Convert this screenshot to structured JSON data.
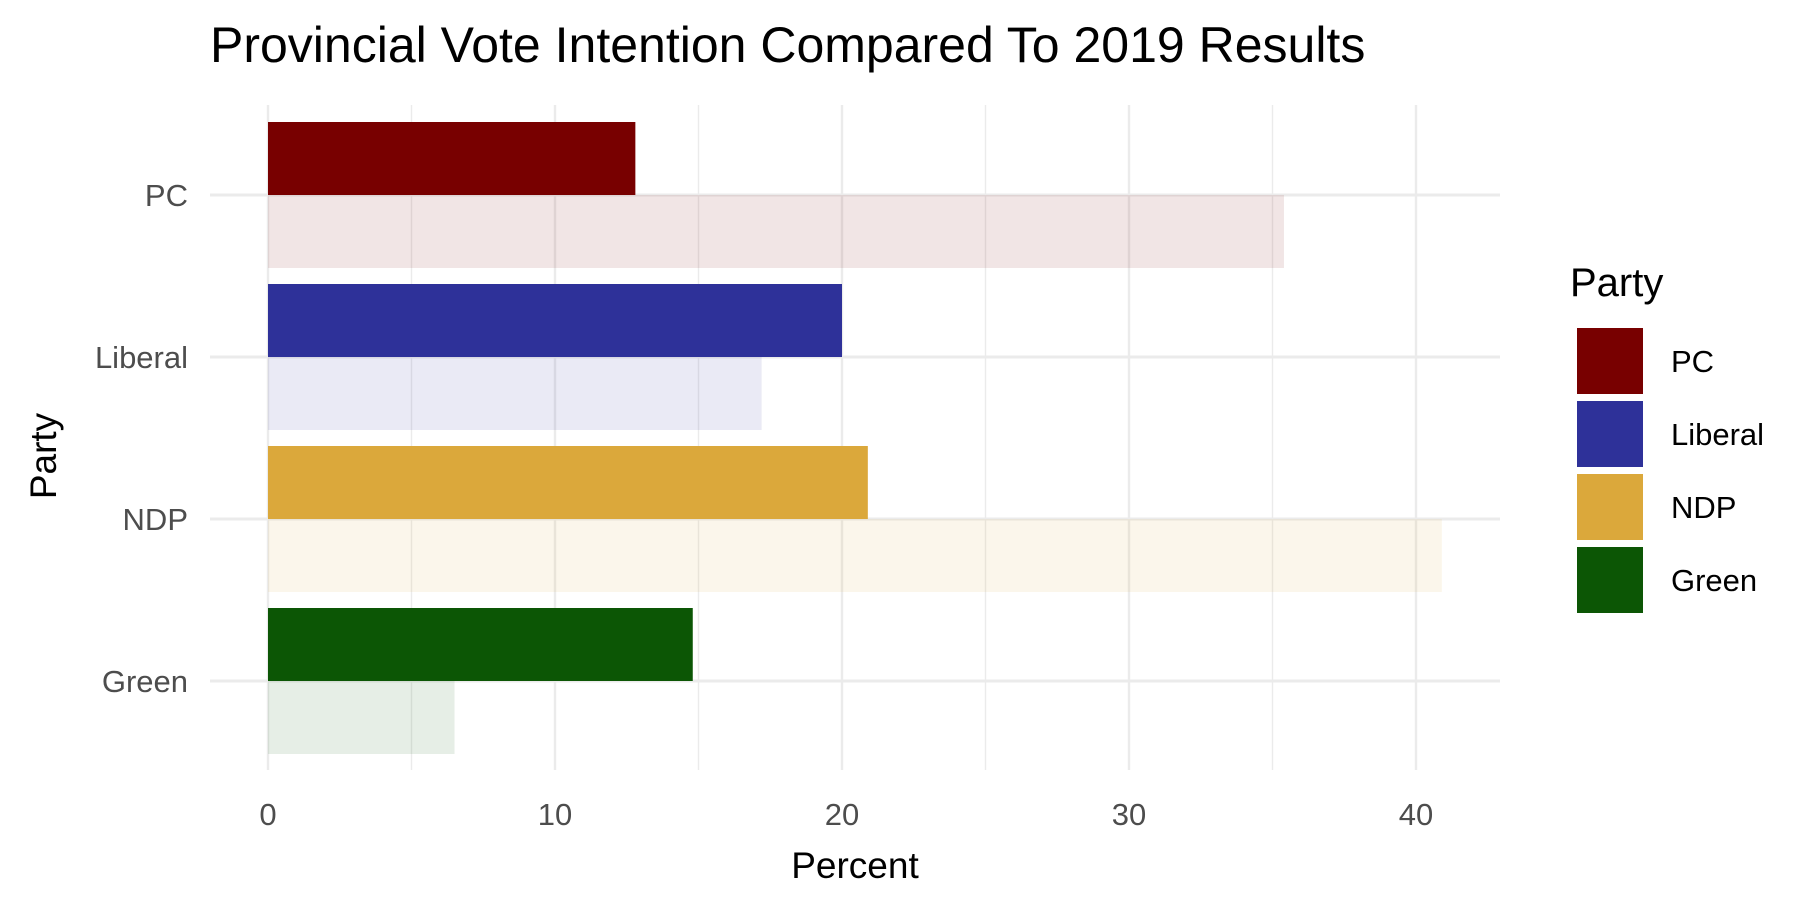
{
  "chart_data": {
    "type": "bar",
    "orientation": "horizontal",
    "title": "Provincial Vote Intention Compared To 2019 Results",
    "xlabel": "Percent",
    "ylabel": "Party",
    "xlim": [
      0,
      43
    ],
    "x_ticks": [
      0,
      10,
      20,
      30,
      40
    ],
    "categories": [
      "PC",
      "Liberal",
      "NDP",
      "Green"
    ],
    "series": [
      {
        "values": [
          12.8,
          20.0,
          20.9,
          14.8
        ],
        "opacity": 1.0
      },
      {
        "values": [
          35.4,
          17.2,
          40.9,
          6.5
        ],
        "opacity": 0.1
      }
    ],
    "colors": {
      "PC": "#780000",
      "Liberal": "#2e3199",
      "NDP": "#dba83b",
      "Green": "#0c5605"
    },
    "grid": true,
    "legend": {
      "title": "Party",
      "position": "right",
      "items": [
        "PC",
        "Liberal",
        "NDP",
        "Green"
      ]
    }
  }
}
